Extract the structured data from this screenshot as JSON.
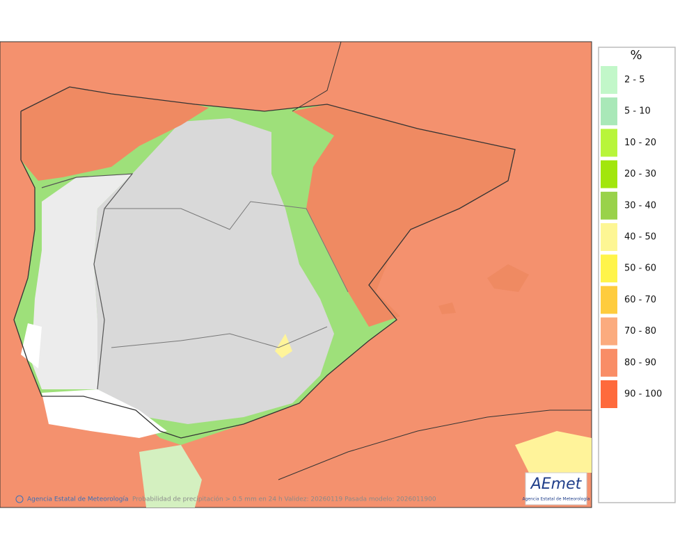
{
  "legend": {
    "title": "%",
    "items": [
      {
        "label": "2 - 5",
        "color": "#c2f7c9"
      },
      {
        "label": "5 - 10",
        "color": "#a9e8b8"
      },
      {
        "label": "10 - 20",
        "color": "#b8f53a"
      },
      {
        "label": "20 - 30",
        "color": "#a2e60c"
      },
      {
        "label": "30 - 40",
        "color": "#99d24a"
      },
      {
        "label": "40 - 50",
        "color": "#fdf694"
      },
      {
        "label": "50 - 60",
        "color": "#fff44a"
      },
      {
        "label": "60 - 70",
        "color": "#fecc3e"
      },
      {
        "label": "70 - 80",
        "color": "#fbab7e"
      },
      {
        "label": "80 - 90",
        "color": "#f98d66"
      },
      {
        "label": "90 - 100",
        "color": "#fe6a3c"
      }
    ]
  },
  "footer": {
    "credit": "Agencia Estatal de Meteorología",
    "caption": "Probabilidad de precipitación > 0.5 mm en 24 h Validez: 20260119 Pasada modelo: 2026011900"
  },
  "logo": {
    "name": "AEmet",
    "subtitle": "Agencia Estatal de Meteorología"
  }
}
